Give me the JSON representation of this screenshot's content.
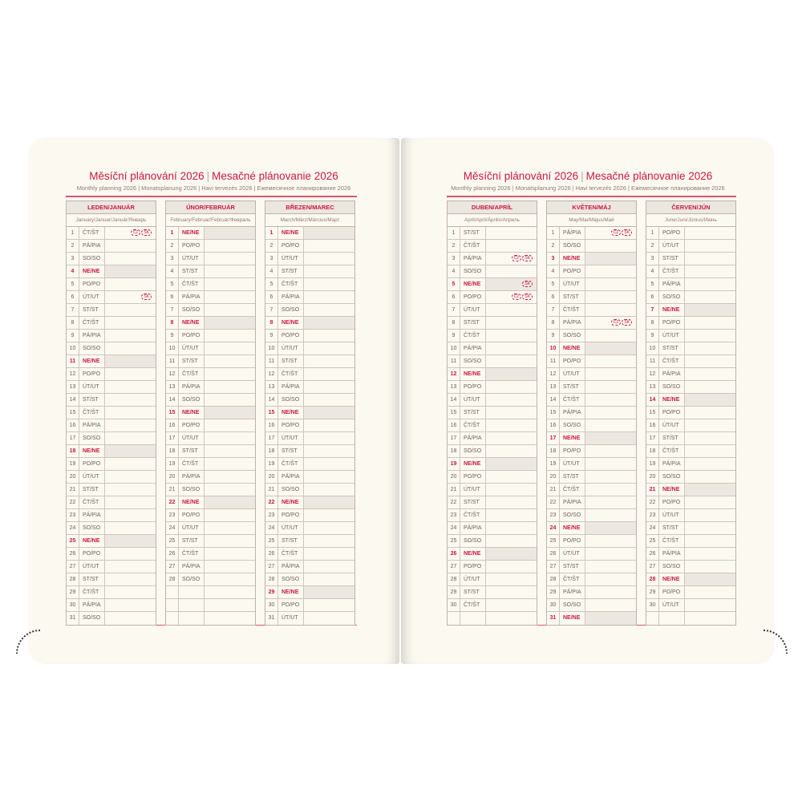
{
  "pages": [
    {
      "title_cz": "Měsíční plánování 2026",
      "title_sk": "Mesačné plánovanie 2026",
      "subtitle": "Monthly planning 2026 | Monatsplanung 2026 | Havi tervezés 2026 | Ежемесячное планирование 2026",
      "months": [
        {
          "name": "LEDEN/JANUÁR",
          "sub": "January/Januar/Január/Январь",
          "days": [
            [
              "1",
              "ČT/ŠT",
              [
                "CZ",
                "SK"
              ]
            ],
            [
              "2",
              "PÁ/PIA"
            ],
            [
              "3",
              "SO/SO"
            ],
            [
              "4",
              "NE/NE"
            ],
            [
              "5",
              "PO/PO"
            ],
            [
              "6",
              "ÚT/UT",
              [
                "SK"
              ]
            ],
            [
              "7",
              "ST/ST"
            ],
            [
              "8",
              "ČT/ŠT"
            ],
            [
              "9",
              "PÁ/PIA"
            ],
            [
              "10",
              "SO/SO"
            ],
            [
              "11",
              "NE/NE"
            ],
            [
              "12",
              "PO/PO"
            ],
            [
              "13",
              "ÚT/UT"
            ],
            [
              "14",
              "ST/ST"
            ],
            [
              "15",
              "ČT/ŠT"
            ],
            [
              "16",
              "PÁ/PIA"
            ],
            [
              "17",
              "SO/SO"
            ],
            [
              "18",
              "NE/NE"
            ],
            [
              "19",
              "PO/PO"
            ],
            [
              "20",
              "ÚT/UT"
            ],
            [
              "21",
              "ST/ST"
            ],
            [
              "22",
              "ČT/ŠT"
            ],
            [
              "23",
              "PÁ/PIA"
            ],
            [
              "24",
              "SO/SO"
            ],
            [
              "25",
              "NE/NE"
            ],
            [
              "26",
              "PO/PO"
            ],
            [
              "27",
              "ÚT/UT"
            ],
            [
              "28",
              "ST/ST"
            ],
            [
              "29",
              "ČT/ŠT"
            ],
            [
              "30",
              "PÁ/PIA"
            ],
            [
              "31",
              "SO/SO"
            ]
          ]
        },
        {
          "name": "ÚNOR/FEBRUÁR",
          "sub": "February/Februar/Február/Февраль",
          "days": [
            [
              "1",
              "NE/NE"
            ],
            [
              "2",
              "PO/PO"
            ],
            [
              "3",
              "ÚT/UT"
            ],
            [
              "4",
              "ST/ST"
            ],
            [
              "5",
              "ČT/ŠT"
            ],
            [
              "6",
              "PÁ/PIA"
            ],
            [
              "7",
              "SO/SO"
            ],
            [
              "8",
              "NE/NE"
            ],
            [
              "9",
              "PO/PO"
            ],
            [
              "10",
              "ÚT/UT"
            ],
            [
              "11",
              "ST/ST"
            ],
            [
              "12",
              "ČT/ŠT"
            ],
            [
              "13",
              "PÁ/PIA"
            ],
            [
              "14",
              "SO/SO"
            ],
            [
              "15",
              "NE/NE"
            ],
            [
              "16",
              "PO/PO"
            ],
            [
              "17",
              "ÚT/UT"
            ],
            [
              "18",
              "ST/ST"
            ],
            [
              "19",
              "ČT/ŠT"
            ],
            [
              "20",
              "PÁ/PIA"
            ],
            [
              "21",
              "SO/SO"
            ],
            [
              "22",
              "NE/NE"
            ],
            [
              "23",
              "PO/PO"
            ],
            [
              "24",
              "ÚT/UT"
            ],
            [
              "25",
              "ST/ST"
            ],
            [
              "26",
              "ČT/ŠT"
            ],
            [
              "27",
              "PÁ/PIA"
            ],
            [
              "28",
              "SO/SO"
            ],
            [
              "",
              ""
            ],
            [
              "",
              ""
            ],
            [
              "",
              ""
            ]
          ]
        },
        {
          "name": "BŘEZEN/MAREC",
          "sub": "March/März/Március/Март",
          "days": [
            [
              "1",
              "NE/NE"
            ],
            [
              "2",
              "PO/PO"
            ],
            [
              "3",
              "ÚT/UT"
            ],
            [
              "4",
              "ST/ST"
            ],
            [
              "5",
              "ČT/ŠT"
            ],
            [
              "6",
              "PÁ/PIA"
            ],
            [
              "7",
              "SO/SO"
            ],
            [
              "8",
              "NE/NE"
            ],
            [
              "9",
              "PO/PO"
            ],
            [
              "10",
              "ÚT/UT"
            ],
            [
              "11",
              "ST/ST"
            ],
            [
              "12",
              "ČT/ŠT"
            ],
            [
              "13",
              "PÁ/PIA"
            ],
            [
              "14",
              "SO/SO"
            ],
            [
              "15",
              "NE/NE"
            ],
            [
              "16",
              "PO/PO"
            ],
            [
              "17",
              "ÚT/UT"
            ],
            [
              "18",
              "ST/ST"
            ],
            [
              "19",
              "ČT/ŠT"
            ],
            [
              "20",
              "PÁ/PIA"
            ],
            [
              "21",
              "SO/SO"
            ],
            [
              "22",
              "NE/NE"
            ],
            [
              "23",
              "PO/PO"
            ],
            [
              "24",
              "ÚT/UT"
            ],
            [
              "25",
              "ST/ST"
            ],
            [
              "26",
              "ČT/ŠT"
            ],
            [
              "27",
              "PÁ/PIA"
            ],
            [
              "28",
              "SO/SO"
            ],
            [
              "29",
              "NE/NE"
            ],
            [
              "30",
              "PO/PO"
            ],
            [
              "31",
              "ÚT/UT"
            ]
          ]
        }
      ]
    },
    {
      "title_cz": "Měsíční plánování 2026",
      "title_sk": "Mesačné plánovanie 2026",
      "subtitle": "Monthly planning 2026 | Monatsplanung 2026 | Havi tervezés 2026 | Ежемесячное планирование 2026",
      "months": [
        {
          "name": "DUBEN/APRÍL",
          "sub": "April/April/Április/Апрель",
          "days": [
            [
              "1",
              "ST/ST"
            ],
            [
              "2",
              "ČT/ŠT"
            ],
            [
              "3",
              "PÁ/PIA",
              [
                "CZ",
                "SK"
              ]
            ],
            [
              "4",
              "SO/SO"
            ],
            [
              "5",
              "NE/NE",
              [
                "SK"
              ]
            ],
            [
              "6",
              "PO/PO",
              [
                "CZ",
                "SK"
              ]
            ],
            [
              "7",
              "ÚT/UT"
            ],
            [
              "8",
              "ST/ST"
            ],
            [
              "9",
              "ČT/ŠT"
            ],
            [
              "10",
              "PÁ/PIA"
            ],
            [
              "11",
              "SO/SO"
            ],
            [
              "12",
              "NE/NE"
            ],
            [
              "13",
              "PO/PO"
            ],
            [
              "14",
              "ÚT/UT"
            ],
            [
              "15",
              "ST/ST"
            ],
            [
              "16",
              "ČT/ŠT"
            ],
            [
              "17",
              "PÁ/PIA"
            ],
            [
              "18",
              "SO/SO"
            ],
            [
              "19",
              "NE/NE"
            ],
            [
              "20",
              "PO/PO"
            ],
            [
              "21",
              "ÚT/UT"
            ],
            [
              "22",
              "ST/ST"
            ],
            [
              "23",
              "ČT/ŠT"
            ],
            [
              "24",
              "PÁ/PIA"
            ],
            [
              "25",
              "SO/SO"
            ],
            [
              "26",
              "NE/NE"
            ],
            [
              "27",
              "PO/PO"
            ],
            [
              "28",
              "ÚT/UT"
            ],
            [
              "29",
              "ST/ST"
            ],
            [
              "30",
              "ČT/ŠT"
            ],
            [
              "",
              ""
            ]
          ]
        },
        {
          "name": "KVĚTEN/MÁJ",
          "sub": "May/Mai/Május/Май",
          "days": [
            [
              "1",
              "PÁ/PIA",
              [
                "CZ",
                "SK"
              ]
            ],
            [
              "2",
              "SO/SO"
            ],
            [
              "3",
              "NE/NE"
            ],
            [
              "4",
              "PO/PO"
            ],
            [
              "5",
              "ÚT/UT"
            ],
            [
              "6",
              "ST/ST"
            ],
            [
              "7",
              "ČT/ŠT"
            ],
            [
              "8",
              "PÁ/PIA",
              [
                "CZ",
                "SK"
              ]
            ],
            [
              "9",
              "SO/SO"
            ],
            [
              "10",
              "NE/NE"
            ],
            [
              "11",
              "PO/PO"
            ],
            [
              "12",
              "ÚT/UT"
            ],
            [
              "13",
              "ST/ST"
            ],
            [
              "14",
              "ČT/ŠT"
            ],
            [
              "15",
              "PÁ/PIA"
            ],
            [
              "16",
              "SO/SO"
            ],
            [
              "17",
              "NE/NE"
            ],
            [
              "18",
              "PO/PO"
            ],
            [
              "19",
              "ÚT/UT"
            ],
            [
              "20",
              "ST/ST"
            ],
            [
              "21",
              "ČT/ŠT"
            ],
            [
              "22",
              "PÁ/PIA"
            ],
            [
              "23",
              "SO/SO"
            ],
            [
              "24",
              "NE/NE"
            ],
            [
              "25",
              "PO/PO"
            ],
            [
              "26",
              "ÚT/UT"
            ],
            [
              "27",
              "ST/ST"
            ],
            [
              "28",
              "ČT/ŠT"
            ],
            [
              "29",
              "PÁ/PIA"
            ],
            [
              "30",
              "SO/SO"
            ],
            [
              "31",
              "NE/NE"
            ]
          ]
        },
        {
          "name": "ČERVEN/JÚN",
          "sub": "June/Juni/Június/Июнь",
          "days": [
            [
              "1",
              "PO/PO"
            ],
            [
              "2",
              "ÚT/UT"
            ],
            [
              "3",
              "ST/ST"
            ],
            [
              "4",
              "ČT/ŠT"
            ],
            [
              "5",
              "PÁ/PIA"
            ],
            [
              "6",
              "SO/SO"
            ],
            [
              "7",
              "NE/NE"
            ],
            [
              "8",
              "PO/PO"
            ],
            [
              "9",
              "ÚT/UT"
            ],
            [
              "10",
              "ST/ST"
            ],
            [
              "11",
              "ČT/ŠT"
            ],
            [
              "12",
              "PÁ/PIA"
            ],
            [
              "13",
              "SO/SO"
            ],
            [
              "14",
              "NE/NE"
            ],
            [
              "15",
              "PO/PO"
            ],
            [
              "16",
              "ÚT/UT"
            ],
            [
              "17",
              "ST/ST"
            ],
            [
              "18",
              "ČT/ŠT"
            ],
            [
              "19",
              "PÁ/PIA"
            ],
            [
              "20",
              "SO/SO"
            ],
            [
              "21",
              "NE/NE"
            ],
            [
              "22",
              "PO/PO"
            ],
            [
              "23",
              "ÚT/UT"
            ],
            [
              "24",
              "ST/ST"
            ],
            [
              "25",
              "ČT/ŠT"
            ],
            [
              "26",
              "PÁ/PIA"
            ],
            [
              "27",
              "SO/SO"
            ],
            [
              "28",
              "NE/NE"
            ],
            [
              "29",
              "PO/PO"
            ],
            [
              "30",
              "ÚT/UT"
            ],
            [
              "",
              ""
            ]
          ]
        }
      ]
    }
  ],
  "colors": {
    "accent": "#c8193f",
    "page": "#fcf9f1",
    "sunday_fill": "#ece7e0"
  }
}
